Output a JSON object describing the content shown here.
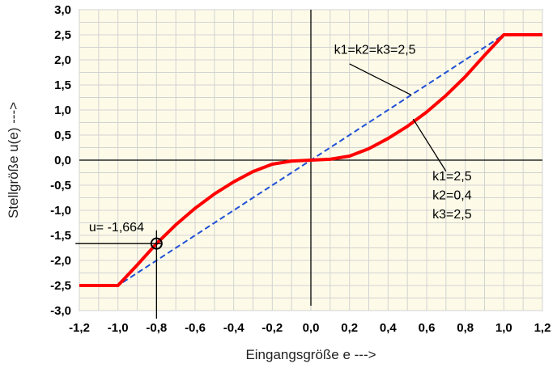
{
  "chart_data": {
    "type": "line",
    "xlabel": "Eingangsgröße e --->",
    "ylabel": "Stellgröße u(e) --->",
    "xlim": [
      -1.2,
      1.2
    ],
    "ylim": [
      -3.0,
      3.0
    ],
    "x_ticks": [
      "-1,2",
      "-1,0",
      "-0,8",
      "-0,6",
      "-0,4",
      "-0,2",
      "0,0",
      "0,2",
      "0,4",
      "0,6",
      "0,8",
      "1,0",
      "1,2"
    ],
    "y_ticks": [
      "3,0",
      "2,5",
      "2,0",
      "1,5",
      "1,0",
      "0,5",
      "0,0",
      "-0,5",
      "-1,0",
      "-1,5",
      "-2,0",
      "-2,5",
      "-3,0"
    ],
    "grid": true,
    "colors": {
      "background": "#fdfbe8",
      "grid": "#d2d2d2",
      "curve": "#ff0000",
      "linear": "#1f4fd6"
    },
    "series": [
      {
        "name": "k1=k2=k3=2,5",
        "style": "dashed",
        "x": [
          -1.2,
          -1.0,
          0.0,
          1.0,
          1.2
        ],
        "y": [
          -2.5,
          -2.5,
          0.0,
          2.5,
          2.5
        ]
      },
      {
        "name": "k1=2,5 / k2=0,4 / k3=2,5",
        "style": "solid",
        "x": [
          -1.2,
          -1.0,
          -0.9,
          -0.8,
          -0.7,
          -0.6,
          -0.5,
          -0.4,
          -0.3,
          -0.2,
          -0.1,
          0.0,
          0.1,
          0.2,
          0.3,
          0.4,
          0.5,
          0.6,
          0.7,
          0.8,
          0.9,
          1.0,
          1.2
        ],
        "y": [
          -2.5,
          -2.5,
          -2.09,
          -1.664,
          -1.288,
          -0.96,
          -0.675,
          -0.432,
          -0.228,
          -0.08,
          -0.018,
          0.0,
          0.018,
          0.08,
          0.228,
          0.432,
          0.675,
          0.96,
          1.288,
          1.664,
          2.09,
          2.5,
          2.5
        ]
      }
    ],
    "annotations": [
      {
        "text": "k1=k2=k3=2,5",
        "x": 0.12,
        "y": 2.12,
        "points_to": {
          "x": 0.52,
          "y": 1.3
        }
      },
      {
        "text": "k1=2,5",
        "x": 0.63,
        "y": -0.4
      },
      {
        "text": "k2=0,4",
        "x": 0.63,
        "y": -0.78
      },
      {
        "text": "k3=2,5",
        "x": 0.63,
        "y": -1.16
      },
      {
        "text": "u= -1,664",
        "x": -1.15,
        "y": -1.42
      }
    ],
    "marker": {
      "x": -0.8,
      "y": -1.664
    }
  }
}
